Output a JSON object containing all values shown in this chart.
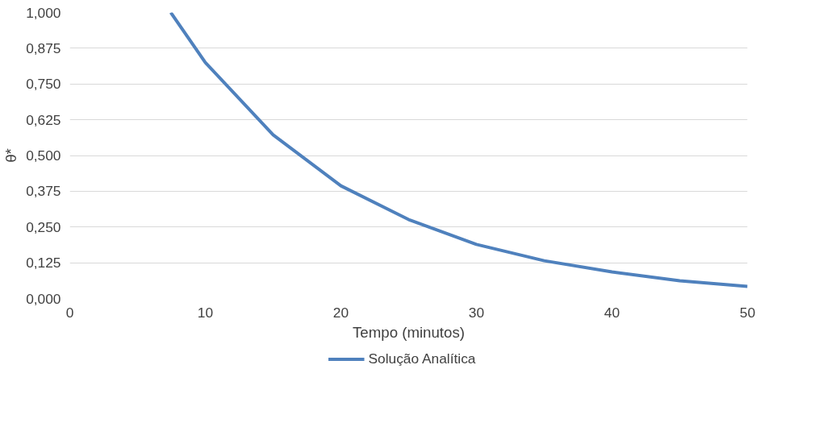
{
  "chart_data": {
    "type": "line",
    "xlabel": "Tempo (minutos)",
    "ylabel": "θ*",
    "x": [
      7.45,
      10,
      15,
      20,
      25,
      30,
      35,
      40,
      45,
      50
    ],
    "series": [
      {
        "name": "Solução Analítica",
        "color": "#4f81bd",
        "values": [
          1.0,
          0.825,
          0.572,
          0.394,
          0.276,
          0.189,
          0.132,
          0.093,
          0.062,
          0.042
        ]
      }
    ],
    "xlim": [
      0,
      50
    ],
    "xticks": [
      0,
      10,
      20,
      30,
      40,
      50
    ],
    "ylim": [
      0,
      1
    ],
    "yticks": [
      {
        "value": 0,
        "label": "0,000"
      },
      {
        "value": 0.125,
        "label": "0,125"
      },
      {
        "value": 0.25,
        "label": "0,250"
      },
      {
        "value": 0.375,
        "label": "0,375"
      },
      {
        "value": 0.5,
        "label": "0,500"
      },
      {
        "value": 0.625,
        "label": "0,625"
      },
      {
        "value": 0.75,
        "label": "0,750"
      },
      {
        "value": 0.875,
        "label": "0,875"
      },
      {
        "value": 1,
        "label": "1,000"
      }
    ],
    "grid": "y",
    "legend": "bottom",
    "marker": "none",
    "line_style": "solid"
  }
}
